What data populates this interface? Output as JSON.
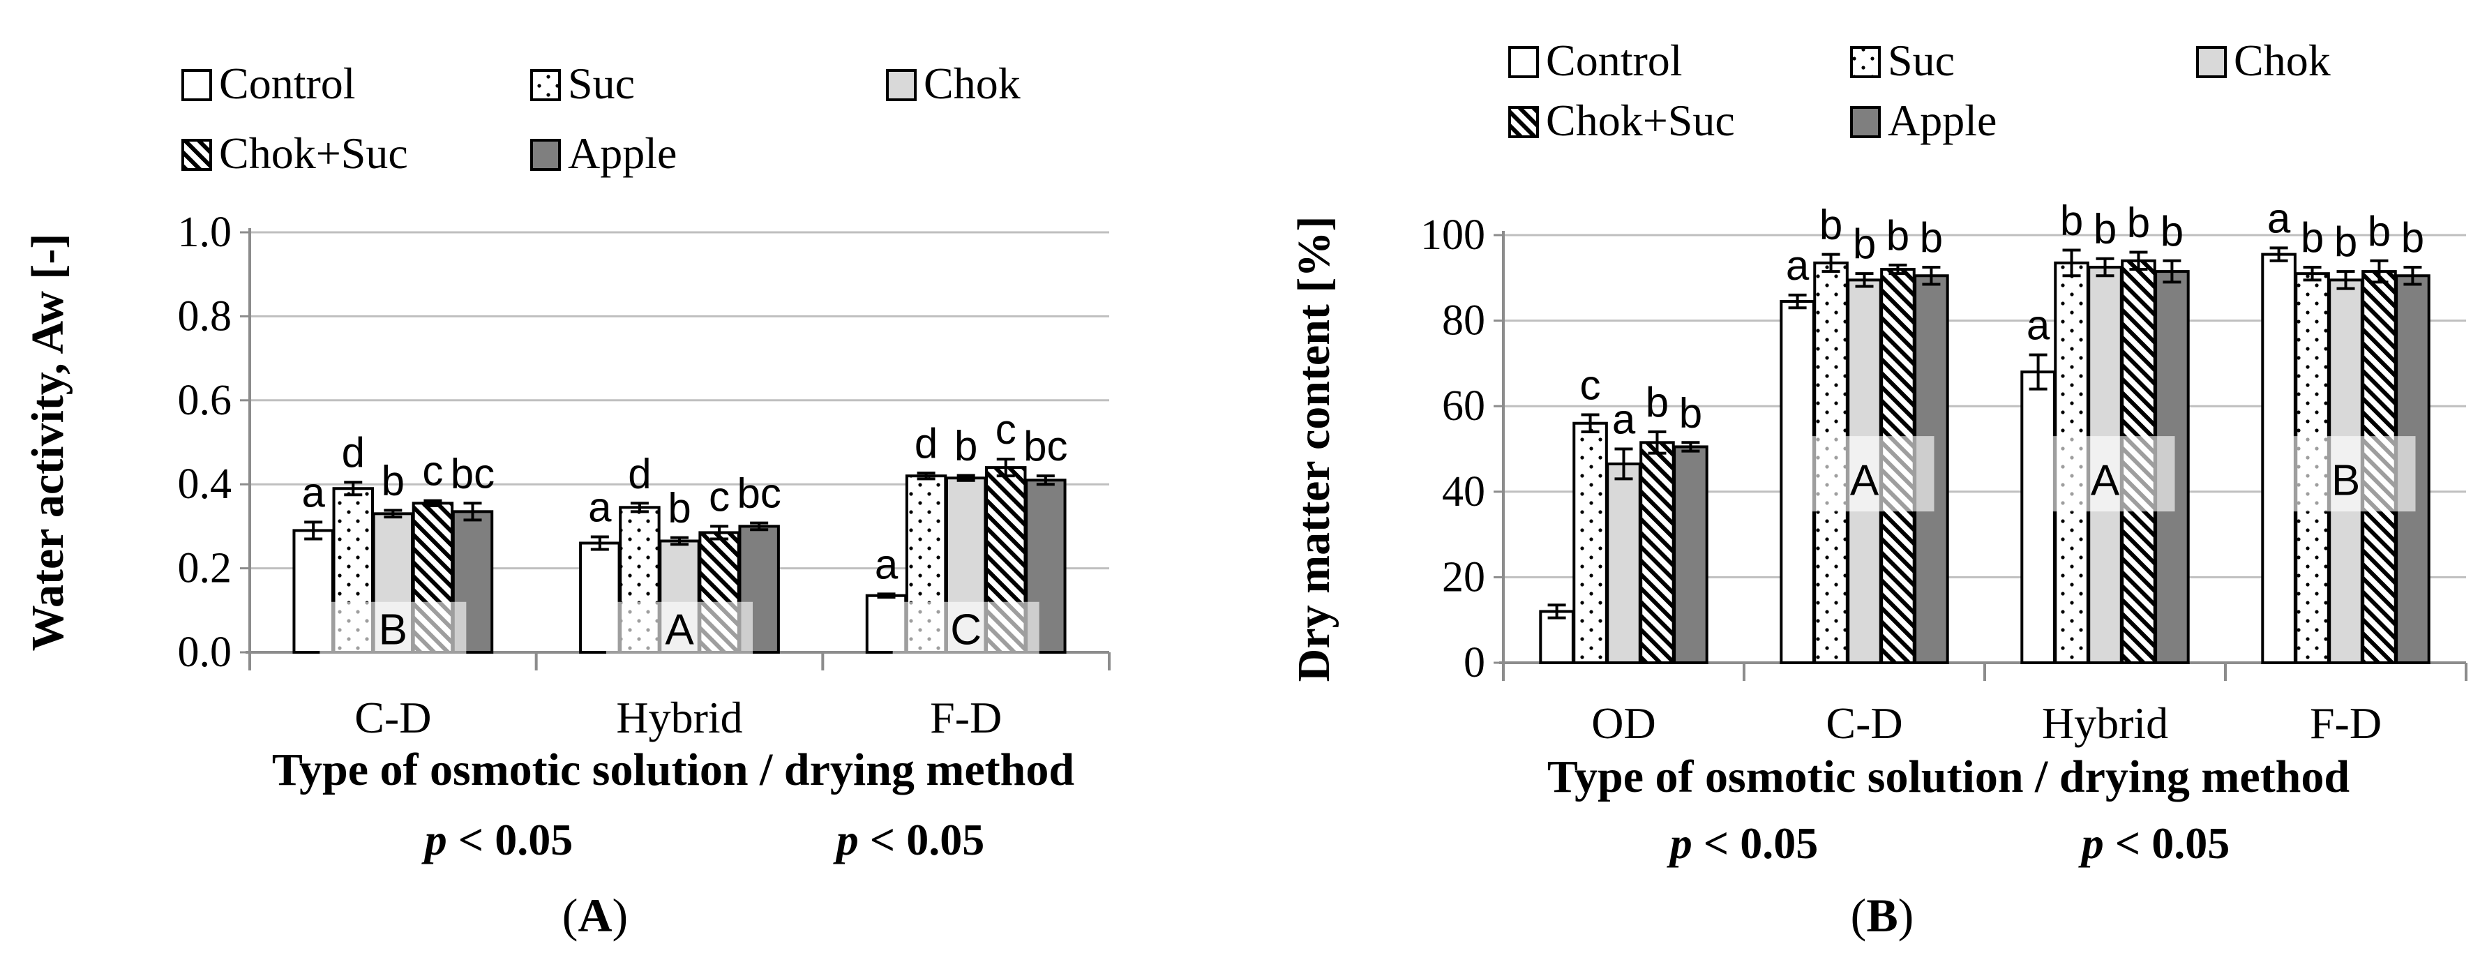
{
  "colors": {
    "control": "#ffffff",
    "suc": "#ffffff",
    "chok": "#d9d9d9",
    "chok_suc": "#ffffff",
    "apple": "#7f7f7f",
    "grid": "#bfbfbf",
    "axis": "#8c8c8c",
    "ink": "#000000"
  },
  "chart_data": [
    {
      "type": "bar",
      "panel_label": "(A)",
      "panel_label_parts": [
        "(",
        "A",
        ")"
      ],
      "ylabel": "Water activity, Aw [-]",
      "xlabel": "Type of osmotic solution / drying method",
      "ylim": [
        0,
        1.0
      ],
      "yticks": [
        "0.0",
        "0.2",
        "0.4",
        "0.6",
        "0.8",
        "1.0"
      ],
      "grid": true,
      "categories": [
        "C-D",
        "Hybrid",
        "F-D"
      ],
      "series": [
        {
          "name": "Control",
          "pattern": "plain",
          "values": [
            0.29,
            0.26,
            0.135
          ],
          "errors": [
            0.02,
            0.015,
            0.004
          ],
          "letters": [
            "a",
            "a",
            "a"
          ]
        },
        {
          "name": "Suc",
          "pattern": "dots",
          "values": [
            0.39,
            0.345,
            0.42
          ],
          "errors": [
            0.015,
            0.01,
            0.007
          ],
          "letters": [
            "d",
            "d",
            "d"
          ]
        },
        {
          "name": "Chok",
          "pattern": "lightgray",
          "values": [
            0.33,
            0.265,
            0.415
          ],
          "errors": [
            0.008,
            0.008,
            0.006
          ],
          "letters": [
            "b",
            "b",
            "b"
          ]
        },
        {
          "name": "Chok+Suc",
          "pattern": "hatch",
          "values": [
            0.355,
            0.285,
            0.44
          ],
          "errors": [
            0.006,
            0.015,
            0.02
          ],
          "letters": [
            "c",
            "c",
            "c"
          ]
        },
        {
          "name": "Apple",
          "pattern": "darkgray",
          "values": [
            0.335,
            0.3,
            0.41
          ],
          "errors": [
            0.02,
            0.008,
            0.01
          ],
          "letters": [
            "bc",
            "bc",
            "bc"
          ]
        }
      ],
      "group_letters": [
        "B",
        "A",
        "C"
      ],
      "p_values": [
        "p < 0.05",
        "p < 0.05"
      ]
    },
    {
      "type": "bar",
      "panel_label": "(B)",
      "panel_label_parts": [
        "(",
        "B",
        ")"
      ],
      "ylabel": "Dry matter content [%]",
      "xlabel": "Type of osmotic solution / drying method",
      "ylim": [
        0,
        100
      ],
      "yticks": [
        "0",
        "20",
        "40",
        "60",
        "80",
        "100"
      ],
      "grid": true,
      "categories": [
        "OD",
        "C-D",
        "Hybrid",
        "F-D"
      ],
      "series": [
        {
          "name": "Control",
          "pattern": "plain",
          "values": [
            12,
            84.5,
            68,
            95.5
          ],
          "errors": [
            1.5,
            1.5,
            4,
            1.5
          ],
          "letters": [
            "",
            "a",
            "a",
            "a"
          ]
        },
        {
          "name": "Suc",
          "pattern": "dots",
          "values": [
            56,
            93.5,
            93.5,
            91
          ],
          "errors": [
            2,
            2,
            3,
            1.5
          ],
          "letters": [
            "c",
            "b",
            "b",
            "b"
          ]
        },
        {
          "name": "Chok",
          "pattern": "lightgray",
          "values": [
            46.5,
            89.5,
            92.5,
            89.5
          ],
          "errors": [
            3.5,
            1.5,
            2,
            2
          ],
          "letters": [
            "a",
            "b",
            "b",
            "b"
          ]
        },
        {
          "name": "Chok+Suc",
          "pattern": "hatch",
          "values": [
            51.5,
            92,
            94,
            91.5
          ],
          "errors": [
            2.5,
            1,
            2,
            2.5
          ],
          "letters": [
            "b",
            "b",
            "b",
            "b"
          ]
        },
        {
          "name": "Apple",
          "pattern": "darkgray",
          "values": [
            50.5,
            90.5,
            91.5,
            90.5
          ],
          "errors": [
            1,
            2,
            2.5,
            2
          ],
          "letters": [
            "b",
            "b",
            "b",
            "b"
          ]
        }
      ],
      "group_letters": [
        "",
        "A",
        "A",
        "B"
      ],
      "p_values": [
        "p < 0.05",
        "p < 0.05"
      ]
    }
  ]
}
